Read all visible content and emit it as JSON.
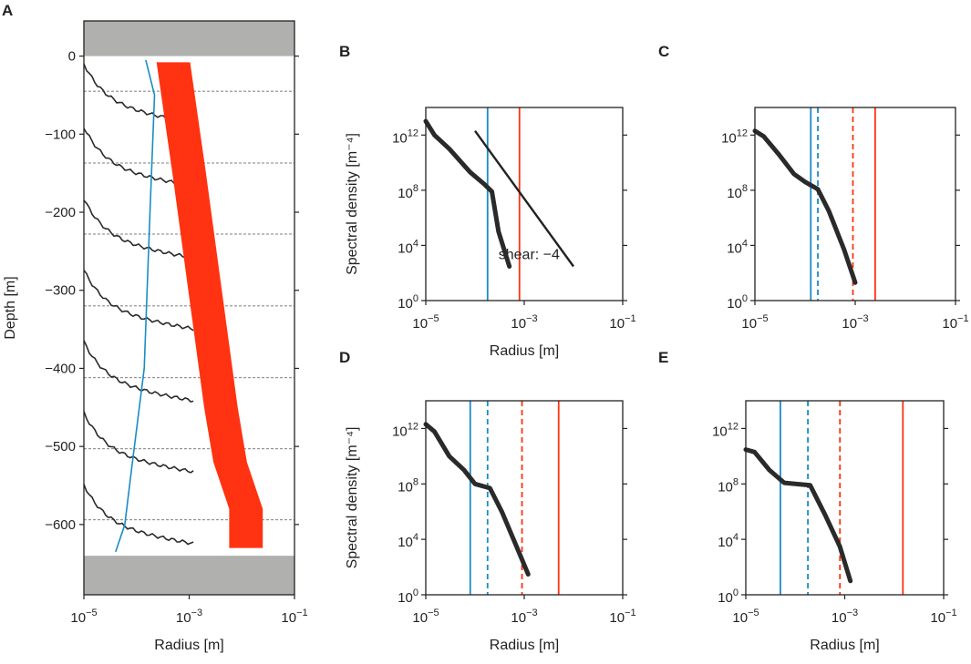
{
  "chart_data": [
    {
      "panel": "A",
      "type": "line",
      "xlabel": "Radius [m]",
      "ylabel": "Depth [m]",
      "xscale": "log",
      "xlim": [
        1e-05,
        0.1
      ],
      "ylim": [
        -690,
        45
      ],
      "xtick_labels": [
        {
          "base": "10",
          "exp": "−5",
          "value": 1e-05
        },
        {
          "base": "10",
          "exp": "−3",
          "value": 0.001
        },
        {
          "base": "10",
          "exp": "−1",
          "value": 0.1
        }
      ],
      "ytick_labels": [
        "0",
        "−100",
        "−200",
        "−300",
        "−400",
        "−500",
        "−600"
      ],
      "ytick_values": [
        0,
        -100,
        -200,
        -300,
        -400,
        -500,
        -600
      ],
      "gray_bands": [
        {
          "from": 0,
          "to": 45
        },
        {
          "from": -640,
          "to": -690
        }
      ],
      "reference_depths": [
        -45,
        -137,
        -228,
        -320,
        -412,
        -503,
        -594
      ],
      "blue_profile": {
        "color": "#1a8cc4",
        "points": [
          [
            0.00015,
            -5
          ],
          [
            0.00022,
            -50
          ],
          [
            0.00018,
            -200
          ],
          [
            0.00014,
            -400
          ],
          [
            8e-05,
            -530
          ],
          [
            6e-05,
            -600
          ],
          [
            4e-05,
            -635
          ]
        ]
      },
      "red_band": {
        "color": "#ff3311",
        "center": [
          [
            0.0005,
            -8
          ],
          [
            0.001,
            -150
          ],
          [
            0.002,
            -300
          ],
          [
            0.004,
            -450
          ],
          [
            0.006,
            -520
          ],
          [
            0.012,
            -580
          ],
          [
            0.012,
            -630
          ]
        ],
        "width_factor": 2.5
      },
      "spectra_offsets": [
        -10,
        -91,
        -183,
        -274,
        -366,
        -457,
        -549
      ],
      "spectra_color": "#2a2a2a"
    },
    {
      "panel": "B",
      "type": "line",
      "xlabel": "Radius [m]",
      "ylabel": "Spectral density [m⁻⁴]",
      "xscale": "log",
      "yscale": "log",
      "xlim": [
        1e-05,
        0.1
      ],
      "ylim": [
        1,
        100000000000000.0
      ],
      "xtick_labels": [
        {
          "base": "10",
          "exp": "−5",
          "value": 1e-05
        },
        {
          "base": "10",
          "exp": "−3",
          "value": 0.001
        },
        {
          "base": "10",
          "exp": "−1",
          "value": 0.1
        }
      ],
      "ytick_labels": [
        {
          "base": "10",
          "exp": "0",
          "value": 1
        },
        {
          "base": "10",
          "exp": "4",
          "value": 10000
        },
        {
          "base": "10",
          "exp": "8",
          "value": 100000000
        },
        {
          "base": "10",
          "exp": "12",
          "value": 1000000000000
        }
      ],
      "spectrum": [
        [
          1e-05,
          10000000000000.0
        ],
        [
          1.5e-05,
          1000000000000.0
        ],
        [
          3e-05,
          100000000000.0
        ],
        [
          8e-05,
          2000000000.0
        ],
        [
          0.00015,
          300000000.0
        ],
        [
          0.00022,
          80000000.0
        ],
        [
          0.0003,
          100000.0
        ],
        [
          0.0005,
          300.0
        ]
      ],
      "vlines": [
        {
          "x": 0.00018,
          "color": "#1a8cc4",
          "style": "solid"
        },
        {
          "x": 0.0008,
          "color": "#ff3311",
          "style": "solid"
        }
      ],
      "reference_line": {
        "points": [
          [
            0.0001,
            2000000000000.0
          ],
          [
            0.01,
            300.0
          ]
        ],
        "label": "shear: −4",
        "label_at": [
          0.0003,
          1000.0
        ]
      }
    },
    {
      "panel": "C",
      "type": "line",
      "xlabel": "",
      "ylabel": "",
      "xscale": "log",
      "yscale": "log",
      "xlim": [
        1e-05,
        0.1
      ],
      "ylim": [
        1,
        100000000000000.0
      ],
      "xtick_labels": [
        {
          "base": "10",
          "exp": "−5",
          "value": 1e-05
        },
        {
          "base": "10",
          "exp": "−3",
          "value": 0.001
        },
        {
          "base": "10",
          "exp": "−1",
          "value": 0.1
        }
      ],
      "ytick_labels": [
        {
          "base": "10",
          "exp": "0",
          "value": 1
        },
        {
          "base": "10",
          "exp": "4",
          "value": 10000
        },
        {
          "base": "10",
          "exp": "8",
          "value": 100000000
        },
        {
          "base": "10",
          "exp": "12",
          "value": 1000000000000
        }
      ],
      "spectrum": [
        [
          1e-05,
          2000000000000.0
        ],
        [
          1.5e-05,
          800000000000.0
        ],
        [
          3e-05,
          40000000000.0
        ],
        [
          6e-05,
          1500000000.0
        ],
        [
          0.0001,
          400000000.0
        ],
        [
          0.00018,
          120000000.0
        ],
        [
          0.0003,
          3000000.0
        ],
        [
          0.0006,
          5000.0
        ],
        [
          0.001,
          20.0
        ]
      ],
      "vlines": [
        {
          "x": 0.00013,
          "color": "#1a8cc4",
          "style": "solid"
        },
        {
          "x": 0.00018,
          "color": "#1a8cc4",
          "style": "dashed"
        },
        {
          "x": 0.0009,
          "color": "#ff3311",
          "style": "dashed"
        },
        {
          "x": 0.0025,
          "color": "#ff3311",
          "style": "solid"
        }
      ]
    },
    {
      "panel": "D",
      "type": "line",
      "xlabel": "Radius [m]",
      "ylabel": "Spectral density [m⁻⁴]",
      "xscale": "log",
      "yscale": "log",
      "xlim": [
        1e-05,
        0.1
      ],
      "ylim": [
        1,
        100000000000000.0
      ],
      "xtick_labels": [
        {
          "base": "10",
          "exp": "−5",
          "value": 1e-05
        },
        {
          "base": "10",
          "exp": "−3",
          "value": 0.001
        },
        {
          "base": "10",
          "exp": "−1",
          "value": 0.1
        }
      ],
      "ytick_labels": [
        {
          "base": "10",
          "exp": "0",
          "value": 1
        },
        {
          "base": "10",
          "exp": "4",
          "value": 10000
        },
        {
          "base": "10",
          "exp": "8",
          "value": 100000000
        },
        {
          "base": "10",
          "exp": "12",
          "value": 1000000000000
        }
      ],
      "spectrum": [
        [
          1e-05,
          2000000000000.0
        ],
        [
          1.5e-05,
          600000000000.0
        ],
        [
          3e-05,
          10000000000.0
        ],
        [
          6e-05,
          1000000000.0
        ],
        [
          0.0001,
          100000000.0
        ],
        [
          0.0002,
          50000000.0
        ],
        [
          0.00035,
          1000000.0
        ],
        [
          0.0007,
          3000.0
        ],
        [
          0.0012,
          30.0
        ]
      ],
      "vlines": [
        {
          "x": 8e-05,
          "color": "#1a8cc4",
          "style": "solid"
        },
        {
          "x": 0.00018,
          "color": "#1a8cc4",
          "style": "dashed"
        },
        {
          "x": 0.0009,
          "color": "#ff3311",
          "style": "dashed"
        },
        {
          "x": 0.005,
          "color": "#ff3311",
          "style": "solid"
        }
      ]
    },
    {
      "panel": "E",
      "type": "line",
      "xlabel": "Radius [m]",
      "ylabel": "",
      "xscale": "log",
      "yscale": "log",
      "xlim": [
        1e-05,
        0.1
      ],
      "ylim": [
        1,
        100000000000000.0
      ],
      "xtick_labels": [
        {
          "base": "10",
          "exp": "−5",
          "value": 1e-05
        },
        {
          "base": "10",
          "exp": "−3",
          "value": 0.001
        },
        {
          "base": "10",
          "exp": "−1",
          "value": 0.1
        }
      ],
      "ytick_labels": [
        {
          "base": "10",
          "exp": "0",
          "value": 1
        },
        {
          "base": "10",
          "exp": "4",
          "value": 10000
        },
        {
          "base": "10",
          "exp": "8",
          "value": 100000000
        },
        {
          "base": "10",
          "exp": "12",
          "value": 1000000000000
        }
      ],
      "spectrum": [
        [
          1e-05,
          30000000000.0
        ],
        [
          1.5e-05,
          20000000000.0
        ],
        [
          3e-05,
          1000000000.0
        ],
        [
          6e-05,
          120000000.0
        ],
        [
          0.0001,
          100000000.0
        ],
        [
          0.0002,
          80000000.0
        ],
        [
          0.0004,
          600000.0
        ],
        [
          0.0008,
          3000.0
        ],
        [
          0.0013,
          10.0
        ]
      ],
      "vlines": [
        {
          "x": 5e-05,
          "color": "#1a8cc4",
          "style": "solid"
        },
        {
          "x": 0.00018,
          "color": "#1a8cc4",
          "style": "dashed"
        },
        {
          "x": 0.0008,
          "color": "#ff3311",
          "style": "dashed"
        },
        {
          "x": 0.015,
          "color": "#ff3311",
          "style": "solid"
        }
      ]
    }
  ]
}
